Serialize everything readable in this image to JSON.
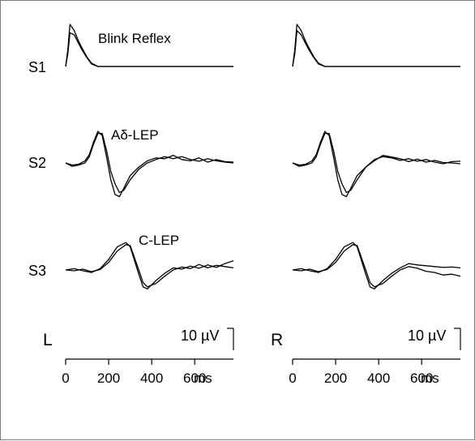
{
  "chart_data": {
    "type": "line",
    "description_units": {
      "x": "ms",
      "scale_bar": "10 µV"
    },
    "rows": [
      {
        "label": "S1",
        "title": "Blink Reflex"
      },
      {
        "label": "S2",
        "title": "Aδ-LEP"
      },
      {
        "label": "S3",
        "title": "C-LEP"
      }
    ],
    "sides": [
      {
        "label": "L",
        "scale_label": "10 µV",
        "x_ticks": [
          "0",
          "200",
          "400",
          "600"
        ],
        "x_unit": "ms"
      },
      {
        "label": "R",
        "scale_label": "10 µV",
        "x_ticks": [
          "0",
          "200",
          "400",
          "600"
        ],
        "x_unit": "ms"
      }
    ],
    "xlim": [
      0,
      780
    ],
    "x_tick_values": [
      0,
      200,
      400,
      600
    ],
    "series_note": "Two superimposed averaged traces per panel",
    "traces": {
      "S1": {
        "x": [
          0,
          10,
          20,
          40,
          60,
          80,
          100,
          120,
          150,
          780
        ],
        "L": [
          [
            0,
            4,
            10,
            8.5,
            6,
            4,
            2.2,
            0.8,
            0,
            0
          ],
          [
            0,
            3,
            8,
            7.5,
            5.5,
            3.6,
            2,
            0.6,
            0,
            0
          ]
        ],
        "R": [
          [
            0,
            4,
            10,
            8.5,
            6,
            4,
            2.2,
            0.8,
            0,
            0
          ],
          [
            0,
            3,
            8.5,
            7.5,
            5.5,
            3.6,
            2,
            0.6,
            0,
            0
          ]
        ]
      },
      "S2": {
        "x": [
          0,
          30,
          60,
          90,
          110,
          130,
          150,
          170,
          190,
          210,
          230,
          250,
          270,
          300,
          340,
          380,
          420,
          460,
          500,
          540,
          580,
          620,
          660,
          700,
          740,
          780
        ],
        "L": [
          [
            0,
            -0.5,
            -0.3,
            0.5,
            2,
            5,
            7.5,
            6.5,
            1.5,
            -4,
            -7.5,
            -8,
            -6,
            -3,
            -1,
            0.5,
            1.2,
            1,
            1.8,
            0.8,
            0.5,
            1.2,
            0.2,
            0.8,
            0.3,
            0.2
          ],
          [
            0,
            -0.8,
            -0.5,
            0,
            1.5,
            4.5,
            7,
            7,
            3,
            -2,
            -5,
            -7,
            -6.5,
            -4,
            -1.5,
            0,
            0.8,
            1.5,
            1,
            1.5,
            0.8,
            0.4,
            1,
            0.5,
            0.2,
            0
          ]
        ],
        "R": [
          [
            0,
            -0.5,
            -0.3,
            0.5,
            2,
            5,
            7.5,
            6.5,
            1.5,
            -4,
            -7.5,
            -8,
            -6,
            -3,
            -1,
            0.8,
            1.5,
            1.2,
            0.6,
            1,
            0.4,
            0.8,
            0.2,
            -0.2,
            0.3,
            0.4
          ],
          [
            0,
            -0.8,
            -0.5,
            0,
            1.5,
            4.5,
            7,
            7,
            3,
            -2,
            -5,
            -7,
            -6.5,
            -4,
            -1,
            0.5,
            1.8,
            1.4,
            1,
            0.3,
            0.9,
            0.2,
            0.6,
            0.1,
            0,
            -0.2
          ]
        ]
      },
      "S3": {
        "x": [
          0,
          40,
          80,
          120,
          160,
          200,
          240,
          280,
          300,
          340,
          360,
          380,
          420,
          460,
          500,
          540,
          580,
          620,
          660,
          700,
          740,
          780
        ],
        "L": [
          [
            0,
            0.3,
            -0.2,
            -0.6,
            0.3,
            2.5,
            5.5,
            6.5,
            5.5,
            -1,
            -4,
            -4.5,
            -2.5,
            -0.8,
            0.5,
            0.2,
            0.9,
            0.4,
            1.2,
            0.6,
            1.5,
            2.2
          ],
          [
            0,
            -0.2,
            0.2,
            -0.4,
            0.1,
            1.8,
            4.5,
            6,
            5.8,
            0,
            -3,
            -4,
            -3.2,
            -1.5,
            0,
            0.7,
            0.3,
            1.3,
            0.5,
            1.1,
            0.8,
            0.5
          ]
        ],
        "R": [
          [
            0,
            0.3,
            -0.2,
            -0.6,
            0.3,
            2.5,
            5.5,
            6.5,
            5.5,
            -1,
            -4,
            -4.5,
            -2.5,
            -0.8,
            0.5,
            1.5,
            1.2,
            1,
            0.8,
            0.6,
            0.7,
            0.5
          ],
          [
            0,
            -0.2,
            0.2,
            -0.4,
            0.1,
            1.8,
            4.5,
            6,
            5.8,
            0,
            -3,
            -4,
            -3.2,
            -1.5,
            0,
            0.8,
            0.4,
            -0.3,
            -0.6,
            -1.2,
            -1,
            -1.5
          ]
        ]
      }
    }
  }
}
